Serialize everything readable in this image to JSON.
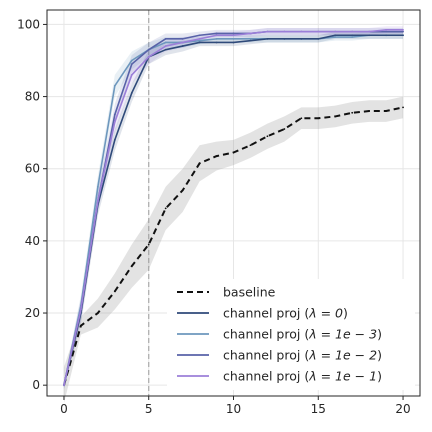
{
  "chart_data": {
    "type": "line",
    "title": "",
    "xlabel": "",
    "ylabel": "",
    "xlim": [
      -1,
      21
    ],
    "ylim": [
      -3,
      104
    ],
    "xticks": [
      0,
      5,
      10,
      15,
      20
    ],
    "yticks": [
      0,
      20,
      40,
      60,
      80,
      100
    ],
    "grid": true,
    "legend_position": "bottom-right",
    "reference_line": {
      "x": 5,
      "style": "dashed",
      "color": "#aaaaaa"
    },
    "x": [
      0,
      1,
      2,
      3,
      4,
      5,
      6,
      7,
      8,
      9,
      10,
      11,
      12,
      13,
      14,
      15,
      16,
      17,
      18,
      19,
      20
    ],
    "series": [
      {
        "name": "baseline",
        "color": "#111111",
        "dash": "6,4",
        "values": [
          0,
          16.5,
          20,
          26,
          33,
          39,
          49,
          54,
          61.5,
          63.5,
          64.5,
          66.5,
          69,
          71,
          74,
          74,
          74.5,
          75.5,
          76,
          76,
          77
        ],
        "band": [
          5,
          2.5,
          4,
          5,
          6,
          7,
          6,
          6,
          5,
          4,
          3.5,
          3.5,
          3.5,
          3.5,
          3,
          3,
          3,
          3,
          3,
          3,
          3
        ]
      },
      {
        "name": "channel proj ($\\lambda = 0$)",
        "color": "#2f4a7a",
        "dash": "",
        "values": [
          0,
          20,
          50,
          68,
          81,
          91,
          93,
          94,
          95,
          95,
          95,
          95.5,
          96,
          96,
          96,
          96,
          97,
          97,
          97,
          97,
          97
        ],
        "band": [
          1,
          3,
          3,
          3,
          2.5,
          2,
          1.5,
          1.5,
          1,
          1,
          1,
          1,
          1,
          1,
          1,
          1,
          1,
          1,
          1,
          1,
          1
        ]
      },
      {
        "name": "channel proj ($\\lambda = 1e-3$)",
        "color": "#6d97bd",
        "dash": "",
        "values": [
          0,
          22,
          55,
          83,
          90,
          93,
          95,
          95,
          95.5,
          96,
          96,
          96,
          96,
          96,
          96,
          96,
          96.5,
          96.5,
          97,
          97,
          97
        ],
        "band": [
          1,
          3,
          3,
          3,
          2.5,
          2,
          1.5,
          1.5,
          1,
          1,
          1,
          1,
          1,
          1,
          1,
          1,
          1,
          1,
          1,
          1,
          1
        ]
      },
      {
        "name": "channel proj ($\\lambda = 1e-2$)",
        "color": "#5862a8",
        "dash": "",
        "values": [
          0,
          21,
          51,
          75,
          89,
          93,
          96,
          96,
          97,
          97.5,
          97.5,
          97.5,
          98,
          98,
          98,
          98,
          98,
          98,
          98,
          98,
          98
        ],
        "band": [
          1,
          3,
          3,
          3,
          2.5,
          2,
          1.5,
          1.5,
          1,
          1,
          1,
          1,
          1,
          1,
          1,
          1,
          1,
          1,
          1,
          1,
          1
        ]
      },
      {
        "name": "channel proj ($\\lambda = 1e-1$)",
        "color": "#9b7fd8",
        "dash": "",
        "values": [
          0,
          21,
          51,
          73,
          86,
          91,
          94,
          95,
          96,
          97,
          97,
          97.5,
          98,
          98,
          98,
          98,
          98,
          98,
          98,
          98.5,
          98.5
        ],
        "band": [
          1,
          3,
          3,
          3,
          2.5,
          2,
          1.5,
          1.5,
          1,
          1,
          1,
          1,
          1,
          1,
          1,
          1,
          1,
          1,
          1,
          1,
          1
        ]
      }
    ]
  },
  "legend": {
    "items": [
      {
        "plain": "baseline",
        "prefix": "",
        "math": "",
        "suffix": ""
      },
      {
        "plain": "",
        "prefix": "channel proj (",
        "math": "λ = 0",
        "suffix": ")"
      },
      {
        "plain": "",
        "prefix": "channel proj (",
        "math": "λ = 1e − 3",
        "suffix": ")"
      },
      {
        "plain": "",
        "prefix": "channel proj (",
        "math": "λ = 1e − 2",
        "suffix": ")"
      },
      {
        "plain": "",
        "prefix": "channel proj (",
        "math": "λ = 1e − 1",
        "suffix": ")"
      }
    ]
  }
}
